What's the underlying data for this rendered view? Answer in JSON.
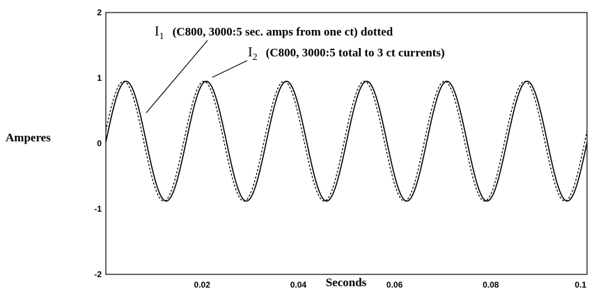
{
  "chart_data": {
    "type": "line",
    "title": "",
    "xlabel": "Seconds",
    "ylabel": "Amperes",
    "xlim": [
      0,
      0.1
    ],
    "ylim": [
      -2,
      2
    ],
    "x_ticks": [
      "0.02",
      "0.04",
      "0.06",
      "0.08",
      "0.1"
    ],
    "x_tick_values": [
      0.02,
      0.04,
      0.06,
      0.08,
      0.1
    ],
    "y_ticks": [
      "2",
      "1",
      "0",
      "-1",
      "-2"
    ],
    "y_tick_values": [
      2,
      1,
      0,
      -1,
      -2
    ],
    "grid": false,
    "frequency_hz": 60,
    "series": [
      {
        "name": "I1",
        "style": "dotted",
        "description": "(C800, 3000:5 sec. amps from one ct) dotted",
        "amplitude_peak": 0.95,
        "amplitude_trough": -0.88,
        "first_peak_x": 0.0037,
        "period": 0.01667
      },
      {
        "name": "I2",
        "style": "solid",
        "description": "(C800, 3000:5 total to 3 ct currents)",
        "amplitude_peak": 0.95,
        "amplitude_trough": -0.88,
        "first_peak_x": 0.0042,
        "period": 0.01667
      }
    ],
    "annotations": [
      {
        "symbol": "I",
        "subscript": "1",
        "text": "(C800, 3000:5 sec. amps from one ct) dotted"
      },
      {
        "symbol": "I",
        "subscript": "2",
        "text": "(C800, 3000:5 total to 3 ct currents)"
      }
    ]
  }
}
